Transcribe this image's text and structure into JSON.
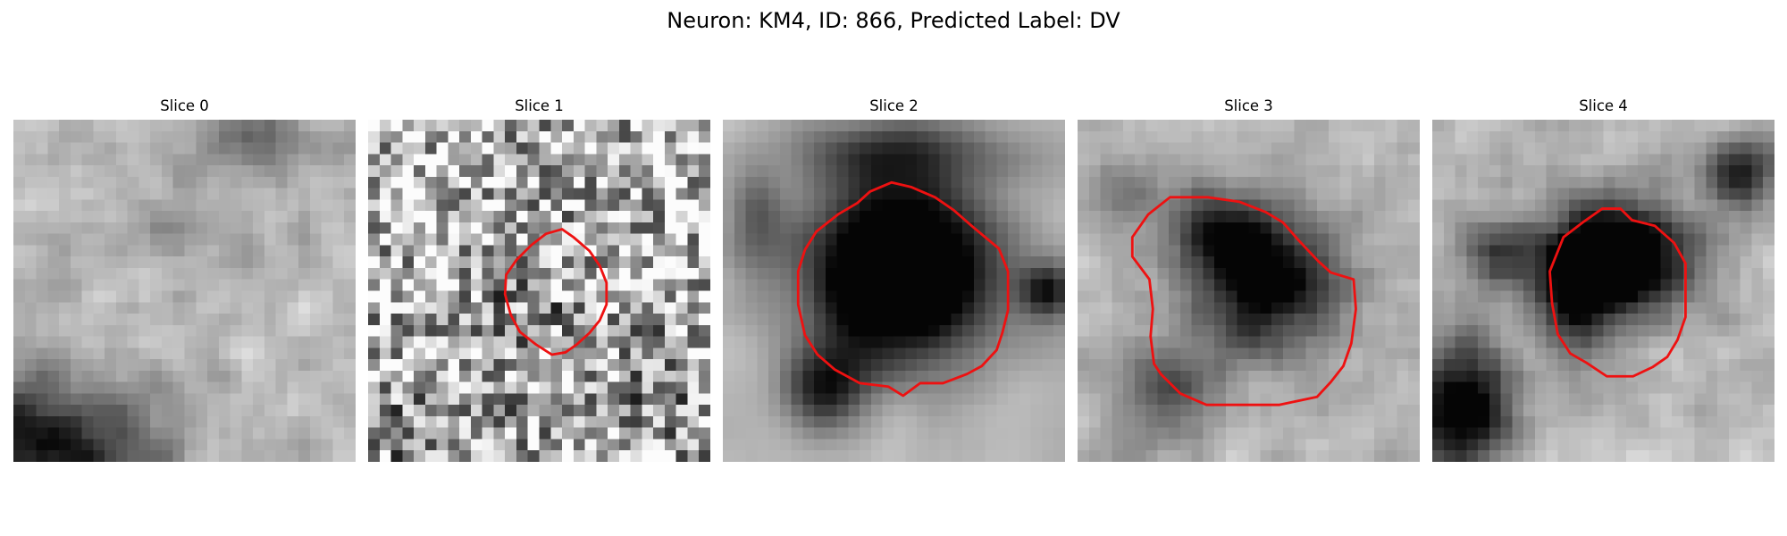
{
  "figure": {
    "title": "Neuron: KM4, ID: 866, Predicted Label: DV"
  },
  "panels": [
    {
      "title": "Slice 0",
      "has_outline": false,
      "dark_blobs": [
        [
          0.0,
          0.92,
          0.25,
          0.2,
          0.95
        ],
        [
          0.25,
          1.0,
          0.25,
          0.15,
          0.6
        ],
        [
          0.72,
          0.05,
          0.2,
          0.1,
          0.5
        ],
        [
          0.48,
          0.3,
          0.12,
          0.1,
          0.35
        ]
      ],
      "contrast": 0.55,
      "noise": 0.5,
      "smooth": 1
    },
    {
      "title": "Slice 1",
      "has_outline": true,
      "dark_blobs": [
        [
          0.45,
          0.55,
          0.18,
          0.18,
          0.35
        ],
        [
          0.85,
          0.8,
          0.2,
          0.2,
          0.3
        ],
        [
          0.15,
          0.9,
          0.3,
          0.2,
          0.3
        ]
      ],
      "contrast": 0.6,
      "noise": 1.0,
      "smooth": 0
    },
    {
      "title": "Slice 2",
      "has_outline": true,
      "dark_blobs": [
        [
          0.52,
          0.45,
          0.27,
          0.25,
          1.25
        ],
        [
          0.3,
          0.78,
          0.12,
          0.12,
          0.6
        ],
        [
          0.5,
          0.1,
          0.3,
          0.1,
          0.45
        ],
        [
          0.1,
          0.3,
          0.08,
          0.15,
          0.3
        ],
        [
          0.95,
          0.5,
          0.08,
          0.08,
          0.6
        ]
      ],
      "contrast": 1.0,
      "noise": 0.3,
      "smooth": 2
    },
    {
      "title": "Slice 3",
      "has_outline": true,
      "dark_blobs": [
        [
          0.55,
          0.48,
          0.22,
          0.2,
          0.9
        ],
        [
          0.42,
          0.32,
          0.15,
          0.12,
          0.5
        ],
        [
          0.25,
          0.8,
          0.15,
          0.15,
          0.45
        ],
        [
          0.15,
          0.2,
          0.1,
          0.1,
          0.3
        ]
      ],
      "contrast": 0.85,
      "noise": 0.4,
      "smooth": 1
    },
    {
      "title": "Slice 4",
      "has_outline": true,
      "dark_blobs": [
        [
          0.55,
          0.4,
          0.2,
          0.16,
          1.1
        ],
        [
          0.42,
          0.52,
          0.1,
          0.18,
          0.6
        ],
        [
          0.08,
          0.85,
          0.15,
          0.2,
          0.85
        ],
        [
          0.9,
          0.15,
          0.1,
          0.1,
          0.6
        ],
        [
          0.2,
          0.4,
          0.12,
          0.1,
          0.5
        ]
      ],
      "contrast": 0.95,
      "noise": 0.45,
      "smooth": 1
    }
  ],
  "colors": {
    "outline": "#ee1111"
  }
}
